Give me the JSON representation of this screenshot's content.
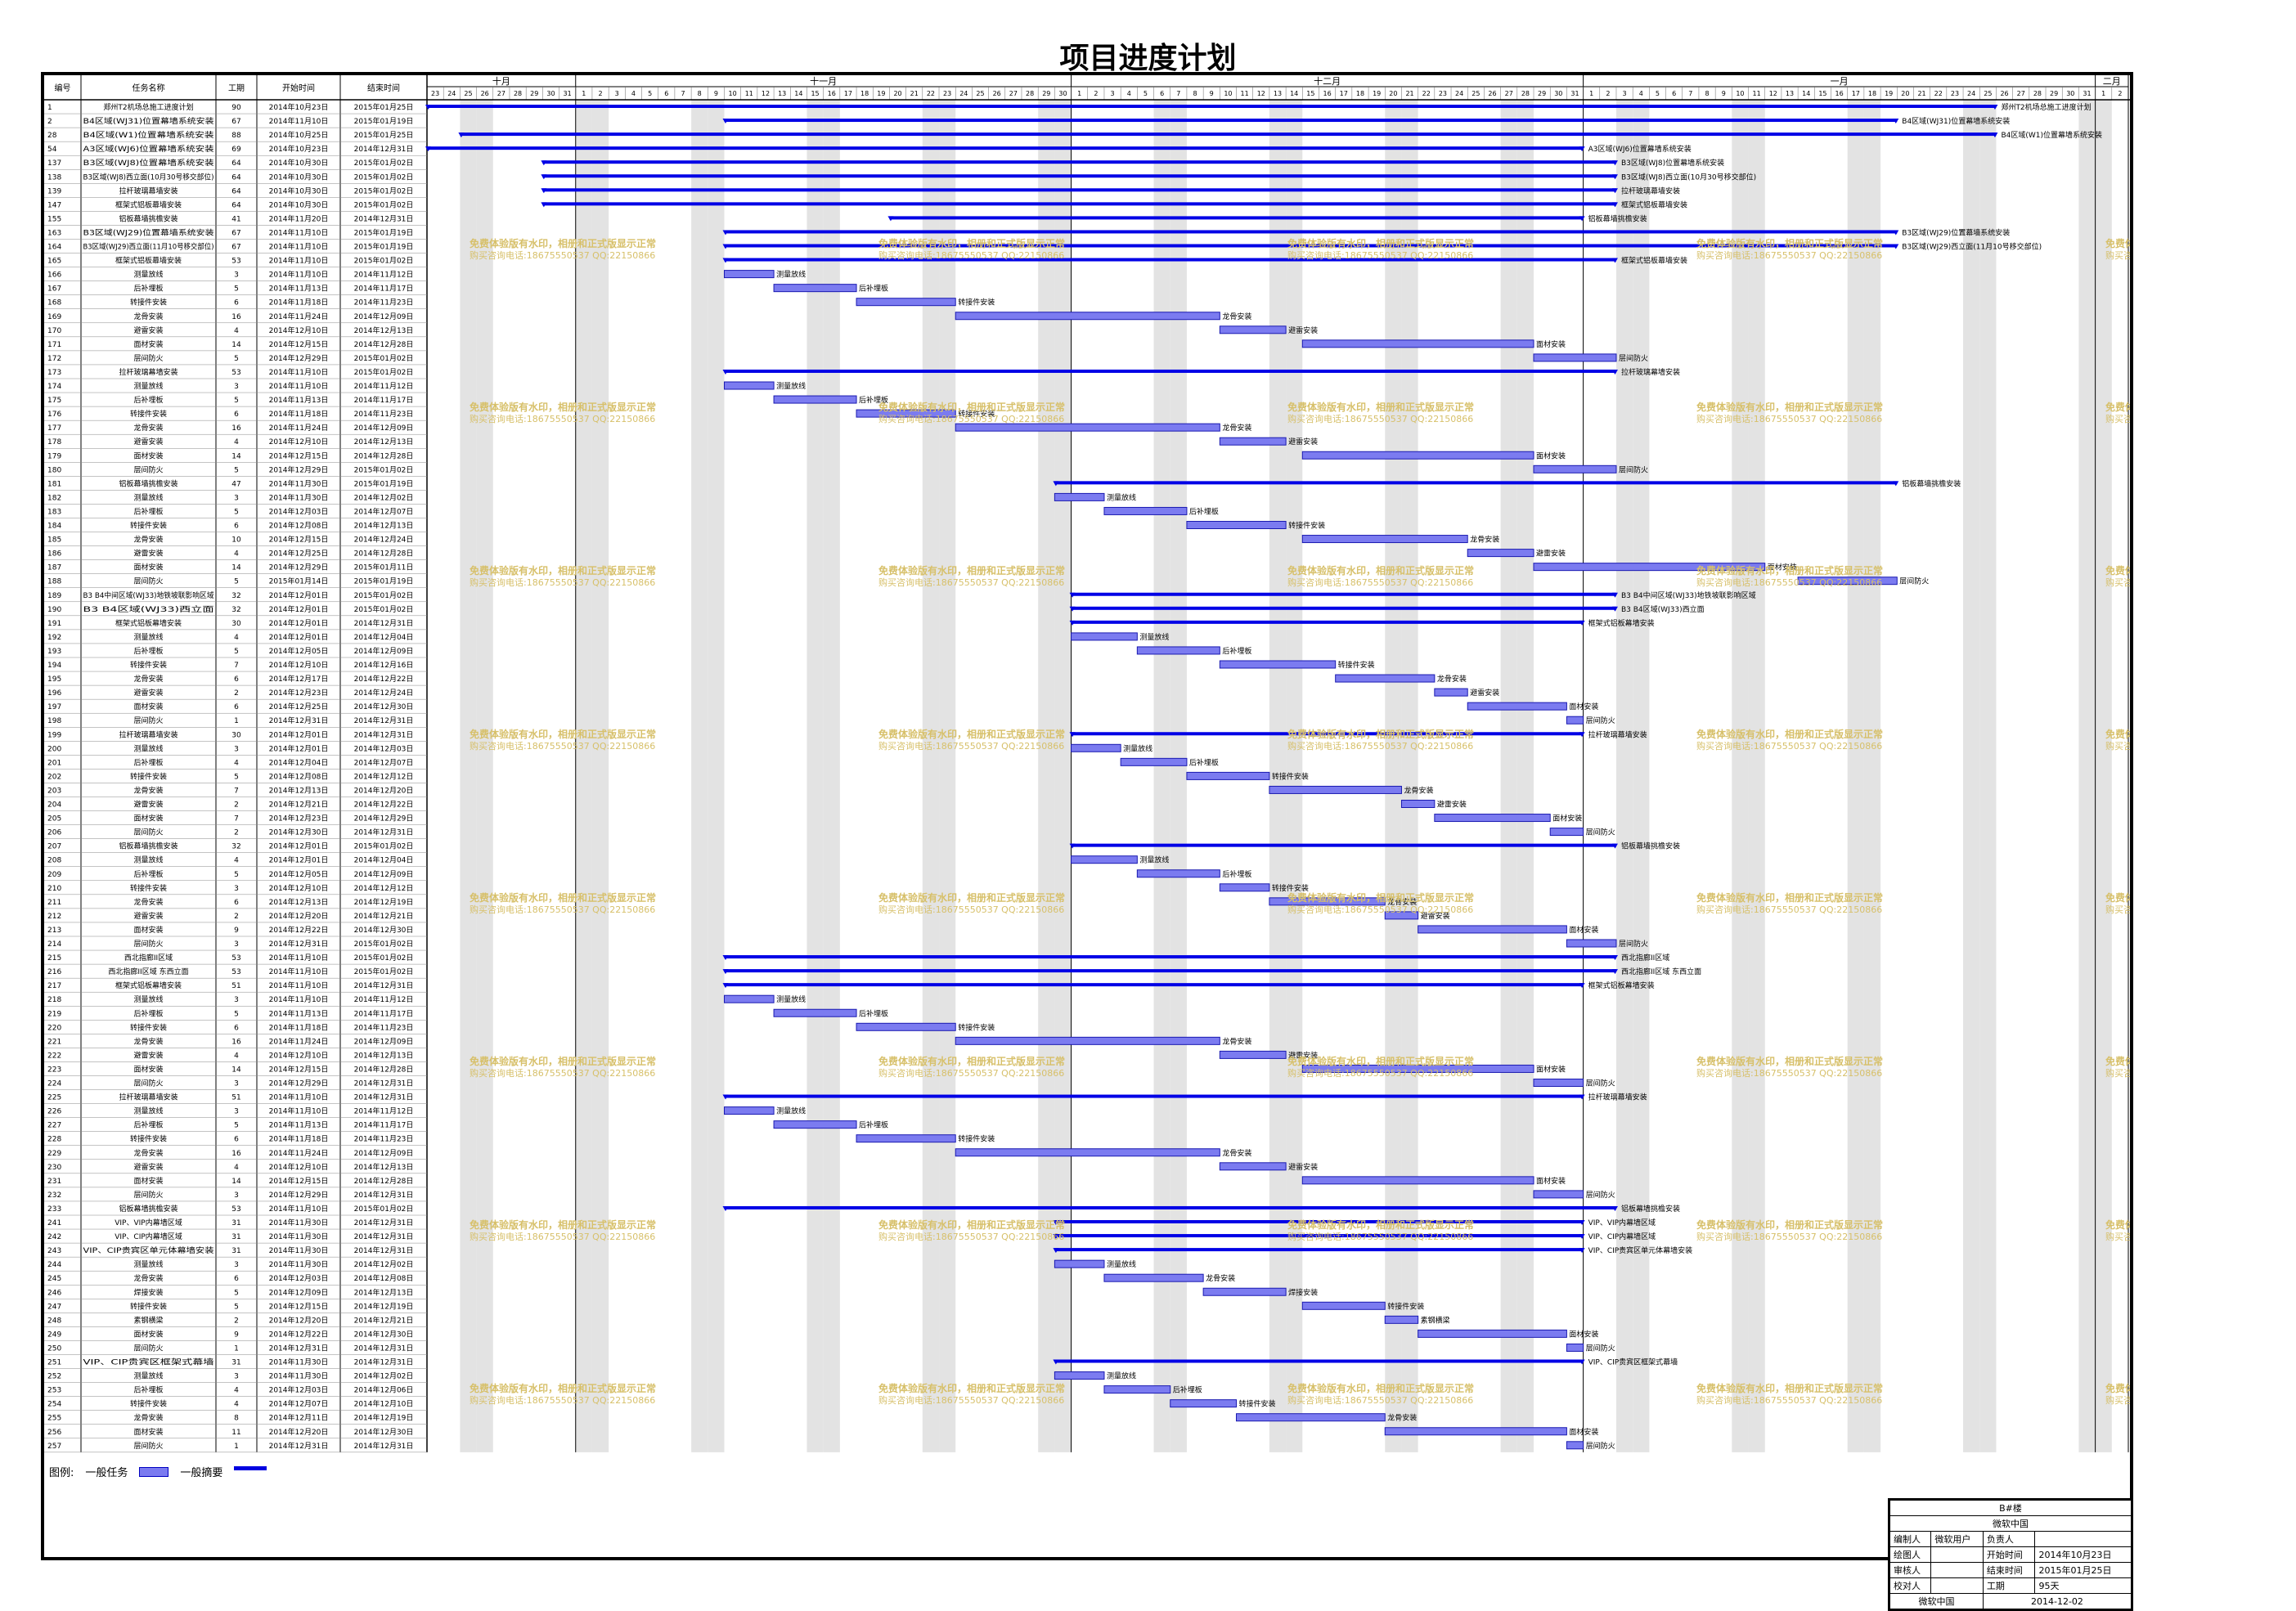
{
  "title": "项目进度计划",
  "columns": {
    "id": "编号",
    "name": "任务名称",
    "duration": "工期",
    "start": "开始时间",
    "end": "结束时间"
  },
  "timeline": {
    "months": [
      "十月",
      "十一月",
      "十二月",
      "一月",
      "二月"
    ],
    "start_date": "2014-10-23",
    "end_date": "2015-02-03"
  },
  "watermark": {
    "line1": "免费体验版有水印，相册和正式版显示正常",
    "line2": "购买咨询电话:18675550537 QQ:22150866"
  },
  "legend": {
    "label": "图例:",
    "task": "一般任务",
    "summary": "一般摘要"
  },
  "title_block": {
    "project": "B#楼",
    "company": "微软中国",
    "rows": [
      [
        "编制人",
        "微软用户",
        "负责人",
        ""
      ],
      [
        "绘图人",
        "",
        "开始时间",
        "2014年10月23日"
      ],
      [
        "审核人",
        "",
        "结束时间",
        "2015年01月25日"
      ],
      [
        "校对人",
        "",
        "工期",
        "95天"
      ]
    ],
    "footer_left": "微软中国",
    "footer_right": "2014-12-02"
  },
  "colors": {
    "bar": "#7b7bf0",
    "bar_border": "#1a1ab0",
    "summary": "#0000e6",
    "weekend": "#e3e3e3",
    "watermark": "#d7c06a"
  },
  "tasks": [
    {
      "id": "1",
      "name": "郑州T2机场总施工进度计划",
      "duration": "90",
      "start": "2014年10月23日",
      "end": "2015年01月25日",
      "type": "summary",
      "label": "郑州T2机场总施工进度计划"
    },
    {
      "id": "2",
      "name": "B4区域(WJ31)位置幕墙系统安装",
      "duration": "67",
      "start": "2014年11月10日",
      "end": "2015年01月19日",
      "type": "summary",
      "label": "B4区域(WJ31)位置幕墙系统安装"
    },
    {
      "id": "28",
      "name": "B4区域(W1)位置幕墙系统安装",
      "duration": "88",
      "start": "2014年10月25日",
      "end": "2015年01月25日",
      "type": "summary",
      "label": "B4区域(W1)位置幕墙系统安装"
    },
    {
      "id": "54",
      "name": "A3区域(WJ6)位置幕墙系统安装",
      "duration": "69",
      "start": "2014年10月23日",
      "end": "2014年12月31日",
      "type": "summary",
      "label": "A3区域(WJ6)位置幕墙系统安装"
    },
    {
      "id": "137",
      "name": "B3区域(WJ8)位置幕墙系统安装",
      "duration": "64",
      "start": "2014年10月30日",
      "end": "2015年01月02日",
      "type": "summary",
      "label": "B3区域(WJ8)位置幕墙系统安装"
    },
    {
      "id": "138",
      "name": "B3区域(WJ8)西立面(10月30号移交部位)",
      "duration": "64",
      "start": "2014年10月30日",
      "end": "2015年01月02日",
      "type": "summary",
      "label": "B3区域(WJ8)西立面(10月30号移交部位)"
    },
    {
      "id": "139",
      "name": "拉杆玻璃幕墙安装",
      "duration": "64",
      "start": "2014年10月30日",
      "end": "2015年01月02日",
      "type": "summary",
      "label": "拉杆玻璃幕墙安装"
    },
    {
      "id": "147",
      "name": "框架式铝板幕墙安装",
      "duration": "64",
      "start": "2014年10月30日",
      "end": "2015年01月02日",
      "type": "summary",
      "label": "框架式铝板幕墙安装"
    },
    {
      "id": "155",
      "name": "铝板幕墙挑檐安装",
      "duration": "41",
      "start": "2014年11月20日",
      "end": "2014年12月31日",
      "type": "summary",
      "label": "铝板幕墙挑檐安装"
    },
    {
      "id": "163",
      "name": "B3区域(WJ29)位置幕墙系统安装",
      "duration": "67",
      "start": "2014年11月10日",
      "end": "2015年01月19日",
      "type": "summary",
      "label": "B3区域(WJ29)位置幕墙系统安装"
    },
    {
      "id": "164",
      "name": "B3区域(WJ29)西立面(11月10号移交部位)",
      "duration": "67",
      "start": "2014年11月10日",
      "end": "2015年01月19日",
      "type": "summary",
      "label": "B3区域(WJ29)西立面(11月10号移交部位)"
    },
    {
      "id": "165",
      "name": "框架式铝板幕墙安装",
      "duration": "53",
      "start": "2014年11月10日",
      "end": "2015年01月02日",
      "type": "summary",
      "label": "框架式铝板幕墙安装"
    },
    {
      "id": "166",
      "name": "测量放线",
      "duration": "3",
      "start": "2014年11月10日",
      "end": "2014年11月12日",
      "type": "task",
      "label": "测量放线"
    },
    {
      "id": "167",
      "name": "后补埋板",
      "duration": "5",
      "start": "2014年11月13日",
      "end": "2014年11月17日",
      "type": "task",
      "label": "后补埋板"
    },
    {
      "id": "168",
      "name": "转接件安装",
      "duration": "6",
      "start": "2014年11月18日",
      "end": "2014年11月23日",
      "type": "task",
      "label": "转接件安装"
    },
    {
      "id": "169",
      "name": "龙骨安装",
      "duration": "16",
      "start": "2014年11月24日",
      "end": "2014年12月09日",
      "type": "task",
      "label": "龙骨安装"
    },
    {
      "id": "170",
      "name": "避雷安装",
      "duration": "4",
      "start": "2014年12月10日",
      "end": "2014年12月13日",
      "type": "task",
      "label": "避雷安装"
    },
    {
      "id": "171",
      "name": "面材安装",
      "duration": "14",
      "start": "2014年12月15日",
      "end": "2014年12月28日",
      "type": "task",
      "label": "面材安装"
    },
    {
      "id": "172",
      "name": "层间防火",
      "duration": "5",
      "start": "2014年12月29日",
      "end": "2015年01月02日",
      "type": "task",
      "label": "层间防火"
    },
    {
      "id": "173",
      "name": "拉杆玻璃幕墙安装",
      "duration": "53",
      "start": "2014年11月10日",
      "end": "2015年01月02日",
      "type": "summary",
      "label": "拉杆玻璃幕墙安装"
    },
    {
      "id": "174",
      "name": "测量放线",
      "duration": "3",
      "start": "2014年11月10日",
      "end": "2014年11月12日",
      "type": "task",
      "label": "测量放线"
    },
    {
      "id": "175",
      "name": "后补埋板",
      "duration": "5",
      "start": "2014年11月13日",
      "end": "2014年11月17日",
      "type": "task",
      "label": "后补埋板"
    },
    {
      "id": "176",
      "name": "转接件安装",
      "duration": "6",
      "start": "2014年11月18日",
      "end": "2014年11月23日",
      "type": "task",
      "label": "转接件安装"
    },
    {
      "id": "177",
      "name": "龙骨安装",
      "duration": "16",
      "start": "2014年11月24日",
      "end": "2014年12月09日",
      "type": "task",
      "label": "龙骨安装"
    },
    {
      "id": "178",
      "name": "避雷安装",
      "duration": "4",
      "start": "2014年12月10日",
      "end": "2014年12月13日",
      "type": "task",
      "label": "避雷安装"
    },
    {
      "id": "179",
      "name": "面材安装",
      "duration": "14",
      "start": "2014年12月15日",
      "end": "2014年12月28日",
      "type": "task",
      "label": "面材安装"
    },
    {
      "id": "180",
      "name": "层间防火",
      "duration": "5",
      "start": "2014年12月29日",
      "end": "2015年01月02日",
      "type": "task",
      "label": "层间防火"
    },
    {
      "id": "181",
      "name": "铝板幕墙挑檐安装",
      "duration": "47",
      "start": "2014年11月30日",
      "end": "2015年01月19日",
      "type": "summary",
      "label": "铝板幕墙挑檐安装"
    },
    {
      "id": "182",
      "name": "测量放线",
      "duration": "3",
      "start": "2014年11月30日",
      "end": "2014年12月02日",
      "type": "task",
      "label": "测量放线"
    },
    {
      "id": "183",
      "name": "后补埋板",
      "duration": "5",
      "start": "2014年12月03日",
      "end": "2014年12月07日",
      "type": "task",
      "label": "后补埋板"
    },
    {
      "id": "184",
      "name": "转接件安装",
      "duration": "6",
      "start": "2014年12月08日",
      "end": "2014年12月13日",
      "type": "task",
      "label": "转接件安装"
    },
    {
      "id": "185",
      "name": "龙骨安装",
      "duration": "10",
      "start": "2014年12月15日",
      "end": "2014年12月24日",
      "type": "task",
      "label": "龙骨安装"
    },
    {
      "id": "186",
      "name": "避雷安装",
      "duration": "4",
      "start": "2014年12月25日",
      "end": "2014年12月28日",
      "type": "task",
      "label": "避雷安装"
    },
    {
      "id": "187",
      "name": "面材安装",
      "duration": "14",
      "start": "2014年12月29日",
      "end": "2015年01月11日",
      "type": "task",
      "label": "面材安装"
    },
    {
      "id": "188",
      "name": "层间防火",
      "duration": "5",
      "start": "2015年01月14日",
      "end": "2015年01月19日",
      "type": "task",
      "label": "层间防火"
    },
    {
      "id": "189",
      "name": "B3 B4中间区域(WJ33)地铁坡联影响区域",
      "duration": "32",
      "start": "2014年12月01日",
      "end": "2015年01月02日",
      "type": "summary",
      "label": "B3 B4中间区域(WJ33)地铁坡联影响区域"
    },
    {
      "id": "190",
      "name": "B3 B4区域(WJ33)西立面",
      "duration": "32",
      "start": "2014年12月01日",
      "end": "2015年01月02日",
      "type": "summary",
      "label": "B3 B4区域(WJ33)西立面"
    },
    {
      "id": "191",
      "name": "框架式铝板幕墙安装",
      "duration": "30",
      "start": "2014年12月01日",
      "end": "2014年12月31日",
      "type": "summary",
      "label": "框架式铝板幕墙安装"
    },
    {
      "id": "192",
      "name": "测量放线",
      "duration": "4",
      "start": "2014年12月01日",
      "end": "2014年12月04日",
      "type": "task",
      "label": "测量放线"
    },
    {
      "id": "193",
      "name": "后补埋板",
      "duration": "5",
      "start": "2014年12月05日",
      "end": "2014年12月09日",
      "type": "task",
      "label": "后补埋板"
    },
    {
      "id": "194",
      "name": "转接件安装",
      "duration": "7",
      "start": "2014年12月10日",
      "end": "2014年12月16日",
      "type": "task",
      "label": "转接件安装"
    },
    {
      "id": "195",
      "name": "龙骨安装",
      "duration": "6",
      "start": "2014年12月17日",
      "end": "2014年12月22日",
      "type": "task",
      "label": "龙骨安装"
    },
    {
      "id": "196",
      "name": "避雷安装",
      "duration": "2",
      "start": "2014年12月23日",
      "end": "2014年12月24日",
      "type": "task",
      "label": "避雷安装"
    },
    {
      "id": "197",
      "name": "面材安装",
      "duration": "6",
      "start": "2014年12月25日",
      "end": "2014年12月30日",
      "type": "task",
      "label": "面材安装"
    },
    {
      "id": "198",
      "name": "层间防火",
      "duration": "1",
      "start": "2014年12月31日",
      "end": "2014年12月31日",
      "type": "task",
      "label": "层间防火"
    },
    {
      "id": "199",
      "name": "拉杆玻璃幕墙安装",
      "duration": "30",
      "start": "2014年12月01日",
      "end": "2014年12月31日",
      "type": "summary",
      "label": "拉杆玻璃幕墙安装"
    },
    {
      "id": "200",
      "name": "测量放线",
      "duration": "3",
      "start": "2014年12月01日",
      "end": "2014年12月03日",
      "type": "task",
      "label": "测量放线"
    },
    {
      "id": "201",
      "name": "后补埋板",
      "duration": "4",
      "start": "2014年12月04日",
      "end": "2014年12月07日",
      "type": "task",
      "label": "后补埋板"
    },
    {
      "id": "202",
      "name": "转接件安装",
      "duration": "5",
      "start": "2014年12月08日",
      "end": "2014年12月12日",
      "type": "task",
      "label": "转接件安装"
    },
    {
      "id": "203",
      "name": "龙骨安装",
      "duration": "7",
      "start": "2014年12月13日",
      "end": "2014年12月20日",
      "type": "task",
      "label": "龙骨安装"
    },
    {
      "id": "204",
      "name": "避雷安装",
      "duration": "2",
      "start": "2014年12月21日",
      "end": "2014年12月22日",
      "type": "task",
      "label": "避雷安装"
    },
    {
      "id": "205",
      "name": "面材安装",
      "duration": "7",
      "start": "2014年12月23日",
      "end": "2014年12月29日",
      "type": "task",
      "label": "面材安装"
    },
    {
      "id": "206",
      "name": "层间防火",
      "duration": "2",
      "start": "2014年12月30日",
      "end": "2014年12月31日",
      "type": "task",
      "label": "层间防火"
    },
    {
      "id": "207",
      "name": "铝板幕墙挑檐安装",
      "duration": "32",
      "start": "2014年12月01日",
      "end": "2015年01月02日",
      "type": "summary",
      "label": "铝板幕墙挑檐安装"
    },
    {
      "id": "208",
      "name": "测量放线",
      "duration": "4",
      "start": "2014年12月01日",
      "end": "2014年12月04日",
      "type": "task",
      "label": "测量放线"
    },
    {
      "id": "209",
      "name": "后补埋板",
      "duration": "5",
      "start": "2014年12月05日",
      "end": "2014年12月09日",
      "type": "task",
      "label": "后补埋板"
    },
    {
      "id": "210",
      "name": "转接件安装",
      "duration": "3",
      "start": "2014年12月10日",
      "end": "2014年12月12日",
      "type": "task",
      "label": "转接件安装"
    },
    {
      "id": "211",
      "name": "龙骨安装",
      "duration": "6",
      "start": "2014年12月13日",
      "end": "2014年12月19日",
      "type": "task",
      "label": "龙骨安装"
    },
    {
      "id": "212",
      "name": "避雷安装",
      "duration": "2",
      "start": "2014年12月20日",
      "end": "2014年12月21日",
      "type": "task",
      "label": "避雷安装"
    },
    {
      "id": "213",
      "name": "面材安装",
      "duration": "9",
      "start": "2014年12月22日",
      "end": "2014年12月30日",
      "type": "task",
      "label": "面材安装"
    },
    {
      "id": "214",
      "name": "层间防火",
      "duration": "3",
      "start": "2014年12月31日",
      "end": "2015年01月02日",
      "type": "task",
      "label": "层间防火"
    },
    {
      "id": "215",
      "name": "西北指廊II区域",
      "duration": "53",
      "start": "2014年11月10日",
      "end": "2015年01月02日",
      "type": "summary",
      "label": "西北指廊II区域"
    },
    {
      "id": "216",
      "name": "西北指廊II区域 东西立面",
      "duration": "53",
      "start": "2014年11月10日",
      "end": "2015年01月02日",
      "type": "summary",
      "label": "西北指廊II区域 东西立面"
    },
    {
      "id": "217",
      "name": "框架式铝板幕墙安装",
      "duration": "51",
      "start": "2014年11月10日",
      "end": "2014年12月31日",
      "type": "summary",
      "label": "框架式铝板幕墙安装"
    },
    {
      "id": "218",
      "name": "测量放线",
      "duration": "3",
      "start": "2014年11月10日",
      "end": "2014年11月12日",
      "type": "task",
      "label": "测量放线"
    },
    {
      "id": "219",
      "name": "后补埋板",
      "duration": "5",
      "start": "2014年11月13日",
      "end": "2014年11月17日",
      "type": "task",
      "label": "后补埋板"
    },
    {
      "id": "220",
      "name": "转接件安装",
      "duration": "6",
      "start": "2014年11月18日",
      "end": "2014年11月23日",
      "type": "task",
      "label": "转接件安装"
    },
    {
      "id": "221",
      "name": "龙骨安装",
      "duration": "16",
      "start": "2014年11月24日",
      "end": "2014年12月09日",
      "type": "task",
      "label": "龙骨安装"
    },
    {
      "id": "222",
      "name": "避雷安装",
      "duration": "4",
      "start": "2014年12月10日",
      "end": "2014年12月13日",
      "type": "task",
      "label": "避雷安装"
    },
    {
      "id": "223",
      "name": "面材安装",
      "duration": "14",
      "start": "2014年12月15日",
      "end": "2014年12月28日",
      "type": "task",
      "label": "面材安装"
    },
    {
      "id": "224",
      "name": "层间防火",
      "duration": "3",
      "start": "2014年12月29日",
      "end": "2014年12月31日",
      "type": "task",
      "label": "层间防火"
    },
    {
      "id": "225",
      "name": "拉杆玻璃幕墙安装",
      "duration": "51",
      "start": "2014年11月10日",
      "end": "2014年12月31日",
      "type": "summary",
      "label": "拉杆玻璃幕墙安装"
    },
    {
      "id": "226",
      "name": "测量放线",
      "duration": "3",
      "start": "2014年11月10日",
      "end": "2014年11月12日",
      "type": "task",
      "label": "测量放线"
    },
    {
      "id": "227",
      "name": "后补埋板",
      "duration": "5",
      "start": "2014年11月13日",
      "end": "2014年11月17日",
      "type": "task",
      "label": "后补埋板"
    },
    {
      "id": "228",
      "name": "转接件安装",
      "duration": "6",
      "start": "2014年11月18日",
      "end": "2014年11月23日",
      "type": "task",
      "label": "转接件安装"
    },
    {
      "id": "229",
      "name": "龙骨安装",
      "duration": "16",
      "start": "2014年11月24日",
      "end": "2014年12月09日",
      "type": "task",
      "label": "龙骨安装"
    },
    {
      "id": "230",
      "name": "避雷安装",
      "duration": "4",
      "start": "2014年12月10日",
      "end": "2014年12月13日",
      "type": "task",
      "label": "避雷安装"
    },
    {
      "id": "231",
      "name": "面材安装",
      "duration": "14",
      "start": "2014年12月15日",
      "end": "2014年12月28日",
      "type": "task",
      "label": "面材安装"
    },
    {
      "id": "232",
      "name": "层间防火",
      "duration": "3",
      "start": "2014年12月29日",
      "end": "2014年12月31日",
      "type": "task",
      "label": "层间防火"
    },
    {
      "id": "233",
      "name": "铝板幕墙挑檐安装",
      "duration": "53",
      "start": "2014年11月10日",
      "end": "2015年01月02日",
      "type": "summary",
      "label": "铝板幕墙挑檐安装"
    },
    {
      "id": "241",
      "name": "VIP、VIP内幕墙区域",
      "duration": "31",
      "start": "2014年11月30日",
      "end": "2014年12月31日",
      "type": "summary",
      "label": "VIP、VIP内幕墙区域"
    },
    {
      "id": "242",
      "name": "VIP、CIP内幕墙区域",
      "duration": "31",
      "start": "2014年11月30日",
      "end": "2014年12月31日",
      "type": "summary",
      "label": "VIP、CIP内幕墙区域"
    },
    {
      "id": "243",
      "name": "VIP、CIP贵宾区单元体幕墙安装",
      "duration": "31",
      "start": "2014年11月30日",
      "end": "2014年12月31日",
      "type": "summary",
      "label": "VIP、CIP贵宾区单元体幕墙安装"
    },
    {
      "id": "244",
      "name": "测量放线",
      "duration": "3",
      "start": "2014年11月30日",
      "end": "2014年12月02日",
      "type": "task",
      "label": "测量放线"
    },
    {
      "id": "245",
      "name": "龙骨安装",
      "duration": "6",
      "start": "2014年12月03日",
      "end": "2014年12月08日",
      "type": "task",
      "label": "龙骨安装"
    },
    {
      "id": "246",
      "name": "焊接安装",
      "duration": "5",
      "start": "2014年12月09日",
      "end": "2014年12月13日",
      "type": "task",
      "label": "焊接安装"
    },
    {
      "id": "247",
      "name": "转接件安装",
      "duration": "5",
      "start": "2014年12月15日",
      "end": "2014年12月19日",
      "type": "task",
      "label": "转接件安装"
    },
    {
      "id": "248",
      "name": "素钢横梁",
      "duration": "2",
      "start": "2014年12月20日",
      "end": "2014年12月21日",
      "type": "task",
      "label": "素钢横梁"
    },
    {
      "id": "249",
      "name": "面材安装",
      "duration": "9",
      "start": "2014年12月22日",
      "end": "2014年12月30日",
      "type": "task",
      "label": "面材安装"
    },
    {
      "id": "250",
      "name": "层间防火",
      "duration": "1",
      "start": "2014年12月31日",
      "end": "2014年12月31日",
      "type": "task",
      "label": "层间防火"
    },
    {
      "id": "251",
      "name": "VIP、CIP贵宾区框架式幕墙",
      "duration": "31",
      "start": "2014年11月30日",
      "end": "2014年12月31日",
      "type": "summary",
      "label": "VIP、CIP贵宾区框架式幕墙"
    },
    {
      "id": "252",
      "name": "测量放线",
      "duration": "3",
      "start": "2014年11月30日",
      "end": "2014年12月02日",
      "type": "task",
      "label": "测量放线"
    },
    {
      "id": "253",
      "name": "后补埋板",
      "duration": "4",
      "start": "2014年12月03日",
      "end": "2014年12月06日",
      "type": "task",
      "label": "后补埋板"
    },
    {
      "id": "254",
      "name": "转接件安装",
      "duration": "4",
      "start": "2014年12月07日",
      "end": "2014年12月10日",
      "type": "task",
      "label": "转接件安装"
    },
    {
      "id": "255",
      "name": "龙骨安装",
      "duration": "8",
      "start": "2014年12月11日",
      "end": "2014年12月19日",
      "type": "task",
      "label": "龙骨安装"
    },
    {
      "id": "256",
      "name": "面材安装",
      "duration": "11",
      "start": "2014年12月20日",
      "end": "2014年12月30日",
      "type": "task",
      "label": "面材安装"
    },
    {
      "id": "257",
      "name": "层间防火",
      "duration": "1",
      "start": "2014年12月31日",
      "end": "2014年12月31日",
      "type": "task",
      "label": "层间防火"
    }
  ]
}
